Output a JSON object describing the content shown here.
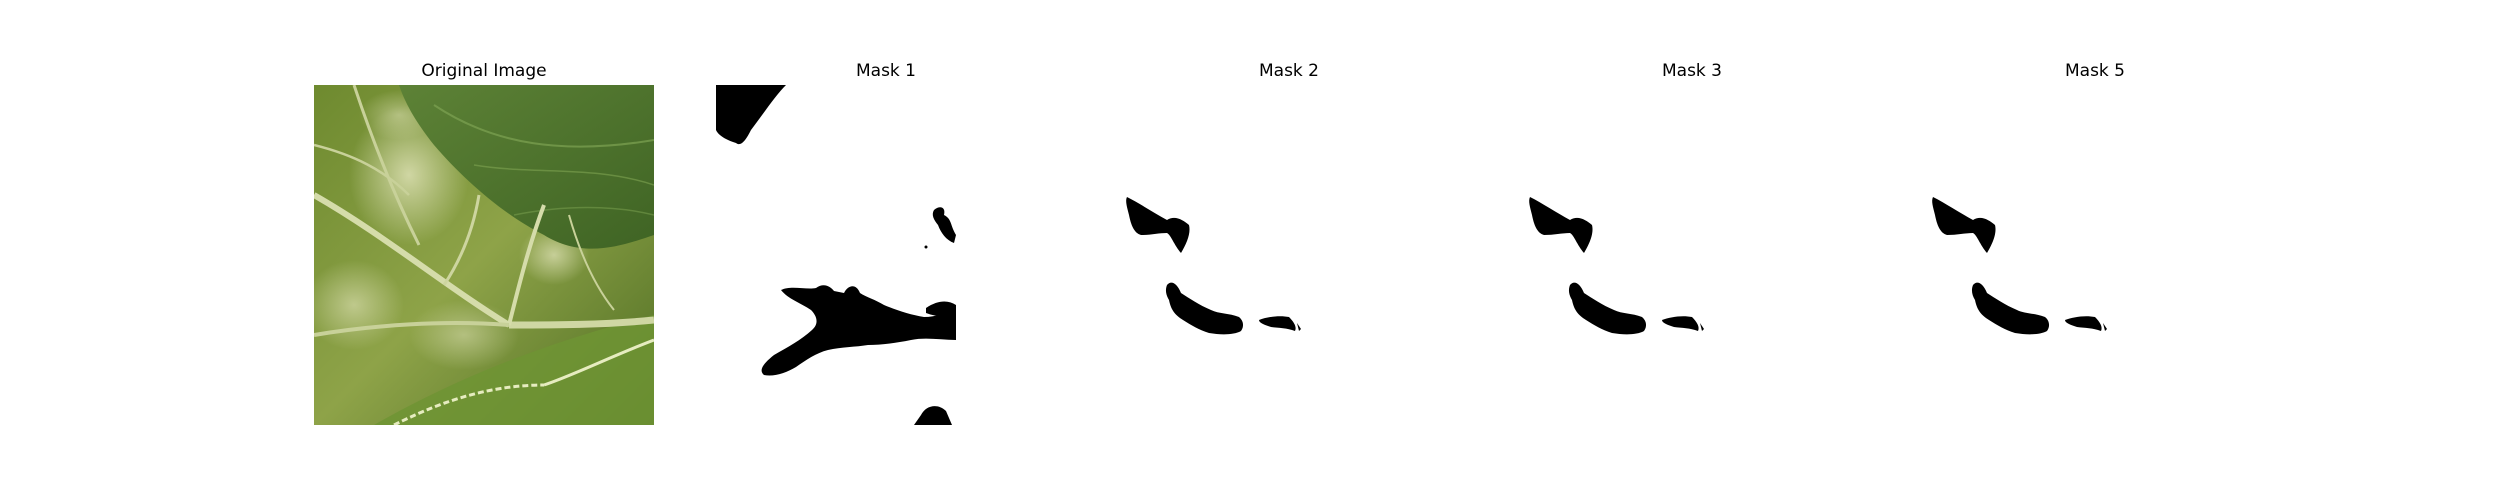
{
  "figure": {
    "panels": [
      {
        "title": "Original Image",
        "kind": "leaf-photo"
      },
      {
        "title": "Mask 1",
        "kind": "mask"
      },
      {
        "title": "Mask 2",
        "kind": "mask"
      },
      {
        "title": "Mask 3",
        "kind": "mask"
      },
      {
        "title": "Mask 5",
        "kind": "mask"
      }
    ]
  },
  "colors": {
    "background": "#ffffff",
    "mask_foreground": "#000000",
    "leaf_dark": "#4f6e27",
    "leaf_mid": "#6d8c38",
    "leaf_light": "#c9d49a",
    "vein": "#d8dfb0"
  }
}
